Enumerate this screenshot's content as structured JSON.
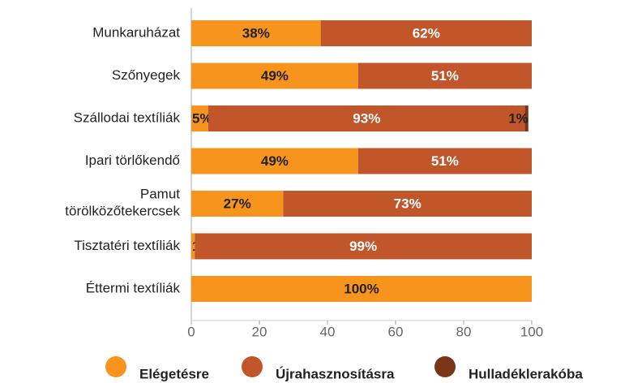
{
  "chart_data": {
    "type": "stacked_barh",
    "categories": [
      "Munkaruházat",
      "Szőnyegek",
      "Szállodai textíliák",
      "Ipari törlőkendő",
      "Pamut\ntörölközőtekercsek",
      "Tisztatéri textíliák",
      "Éttermi textíliák"
    ],
    "series": [
      {
        "name": "Elégetésre",
        "color": "#f7941d",
        "values": [
          38,
          49,
          5,
          49,
          27,
          1,
          100
        ],
        "value_labels": [
          "38%",
          "49%",
          "5%",
          "49%",
          "27%",
          "1%",
          "100%"
        ]
      },
      {
        "name": "Újrahasznosításra",
        "color": "#c0562a",
        "values": [
          62,
          51,
          93,
          51,
          73,
          99,
          0
        ],
        "value_labels": [
          "62%",
          "51%",
          "93%",
          "51%",
          "73%",
          "99%",
          null
        ]
      },
      {
        "name": "Hulladéklerakóba",
        "color": "#7a3416",
        "values": [
          0,
          0,
          1,
          0,
          0,
          0,
          0
        ],
        "value_labels": [
          null,
          null,
          "1%",
          null,
          null,
          null,
          null
        ]
      }
    ],
    "xlim": [
      0,
      100
    ],
    "xticks": [
      0,
      20,
      40,
      60,
      80,
      100
    ],
    "legend": "bottom"
  }
}
